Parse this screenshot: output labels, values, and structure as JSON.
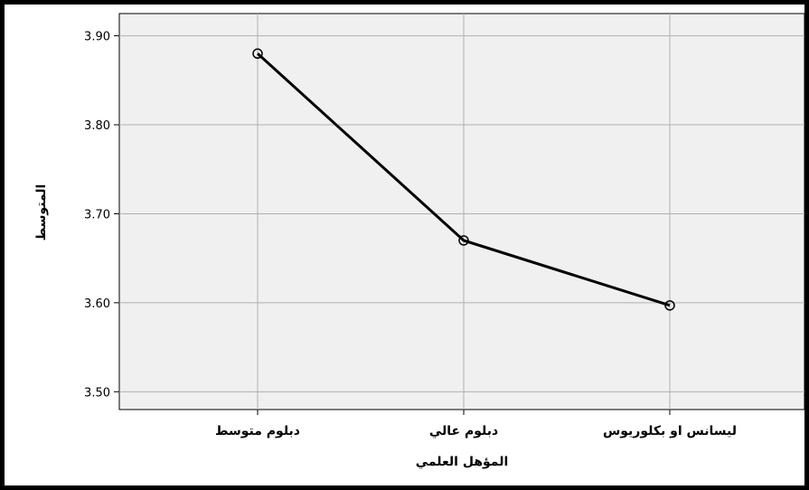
{
  "chart_data": {
    "type": "line",
    "xlabel": "المؤهل العلمي",
    "ylabel": "المتوسط",
    "categories": [
      "دبلوم متوسط",
      "دبلوم عالي",
      "ليسانس او بكلوريوس"
    ],
    "series": [
      {
        "values": [
          3.88,
          3.67,
          3.597
        ]
      }
    ],
    "yticks": [
      "3.50",
      "3.60",
      "3.70",
      "3.80",
      "3.90"
    ],
    "ylim": [
      3.48,
      3.925
    ],
    "grid": true,
    "colors": {
      "line": "#000000",
      "plot_bg": "#f0f0f0",
      "grid": "#b0b0b0"
    }
  }
}
